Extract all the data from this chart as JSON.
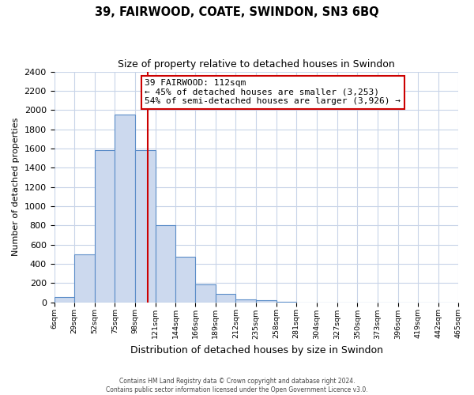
{
  "title_line1": "39, FAIRWOOD, COATE, SWINDON, SN3 6BQ",
  "title_line2": "Size of property relative to detached houses in Swindon",
  "xlabel": "Distribution of detached houses by size in Swindon",
  "ylabel": "Number of detached properties",
  "bar_edges": [
    6,
    29,
    52,
    75,
    98,
    121,
    144,
    166,
    189,
    212,
    235,
    258,
    281,
    304,
    327,
    350,
    373,
    396,
    419,
    442,
    465
  ],
  "bar_heights": [
    50,
    500,
    1580,
    1950,
    1580,
    800,
    470,
    185,
    90,
    30,
    18,
    5,
    0,
    0,
    0,
    0,
    0,
    0,
    0,
    0
  ],
  "bar_color": "#ccd9ee",
  "bar_edge_color": "#5b8dc8",
  "vline_x": 112,
  "vline_color": "#cc0000",
  "annotation_text": "39 FAIRWOOD: 112sqm\n← 45% of detached houses are smaller (3,253)\n54% of semi-detached houses are larger (3,926) →",
  "annotation_box_color": "#ffffff",
  "annotation_box_edge": "#cc0000",
  "ylim": [
    0,
    2400
  ],
  "yticks": [
    0,
    200,
    400,
    600,
    800,
    1000,
    1200,
    1400,
    1600,
    1800,
    2000,
    2200,
    2400
  ],
  "xtick_labels": [
    "6sqm",
    "29sqm",
    "52sqm",
    "75sqm",
    "98sqm",
    "121sqm",
    "144sqm",
    "166sqm",
    "189sqm",
    "212sqm",
    "235sqm",
    "258sqm",
    "281sqm",
    "304sqm",
    "327sqm",
    "350sqm",
    "373sqm",
    "396sqm",
    "419sqm",
    "442sqm",
    "465sqm"
  ],
  "footer_line1": "Contains HM Land Registry data © Crown copyright and database right 2024.",
  "footer_line2": "Contains public sector information licensed under the Open Government Licence v3.0.",
  "bg_color": "#ffffff",
  "grid_color": "#c8d4e8"
}
